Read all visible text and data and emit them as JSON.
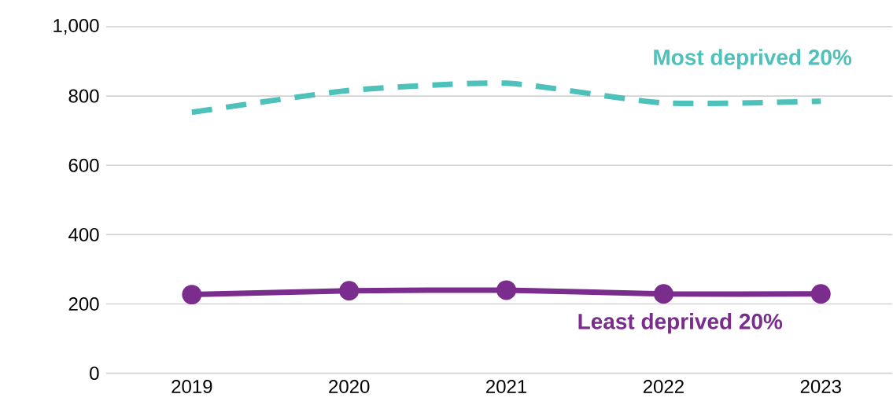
{
  "chart_data": {
    "type": "line",
    "categories": [
      "2019",
      "2020",
      "2021",
      "2022",
      "2023"
    ],
    "series": [
      {
        "name": "Most deprived 20%",
        "color": "#4fc1bb",
        "values": [
          753,
          816,
          837,
          780,
          785
        ],
        "line_style": "dashed",
        "marker": "none"
      },
      {
        "name": "Least deprived 20%",
        "color": "#7b2d8e",
        "values": [
          227,
          238,
          240,
          229,
          229
        ],
        "line_style": "solid",
        "marker": "circle"
      }
    ],
    "ylim": [
      0,
      1000
    ],
    "yticks": [
      0,
      200,
      400,
      600,
      800,
      {
        "value": 1000,
        "label": "1,000"
      }
    ],
    "grid": "y",
    "legend": false
  }
}
